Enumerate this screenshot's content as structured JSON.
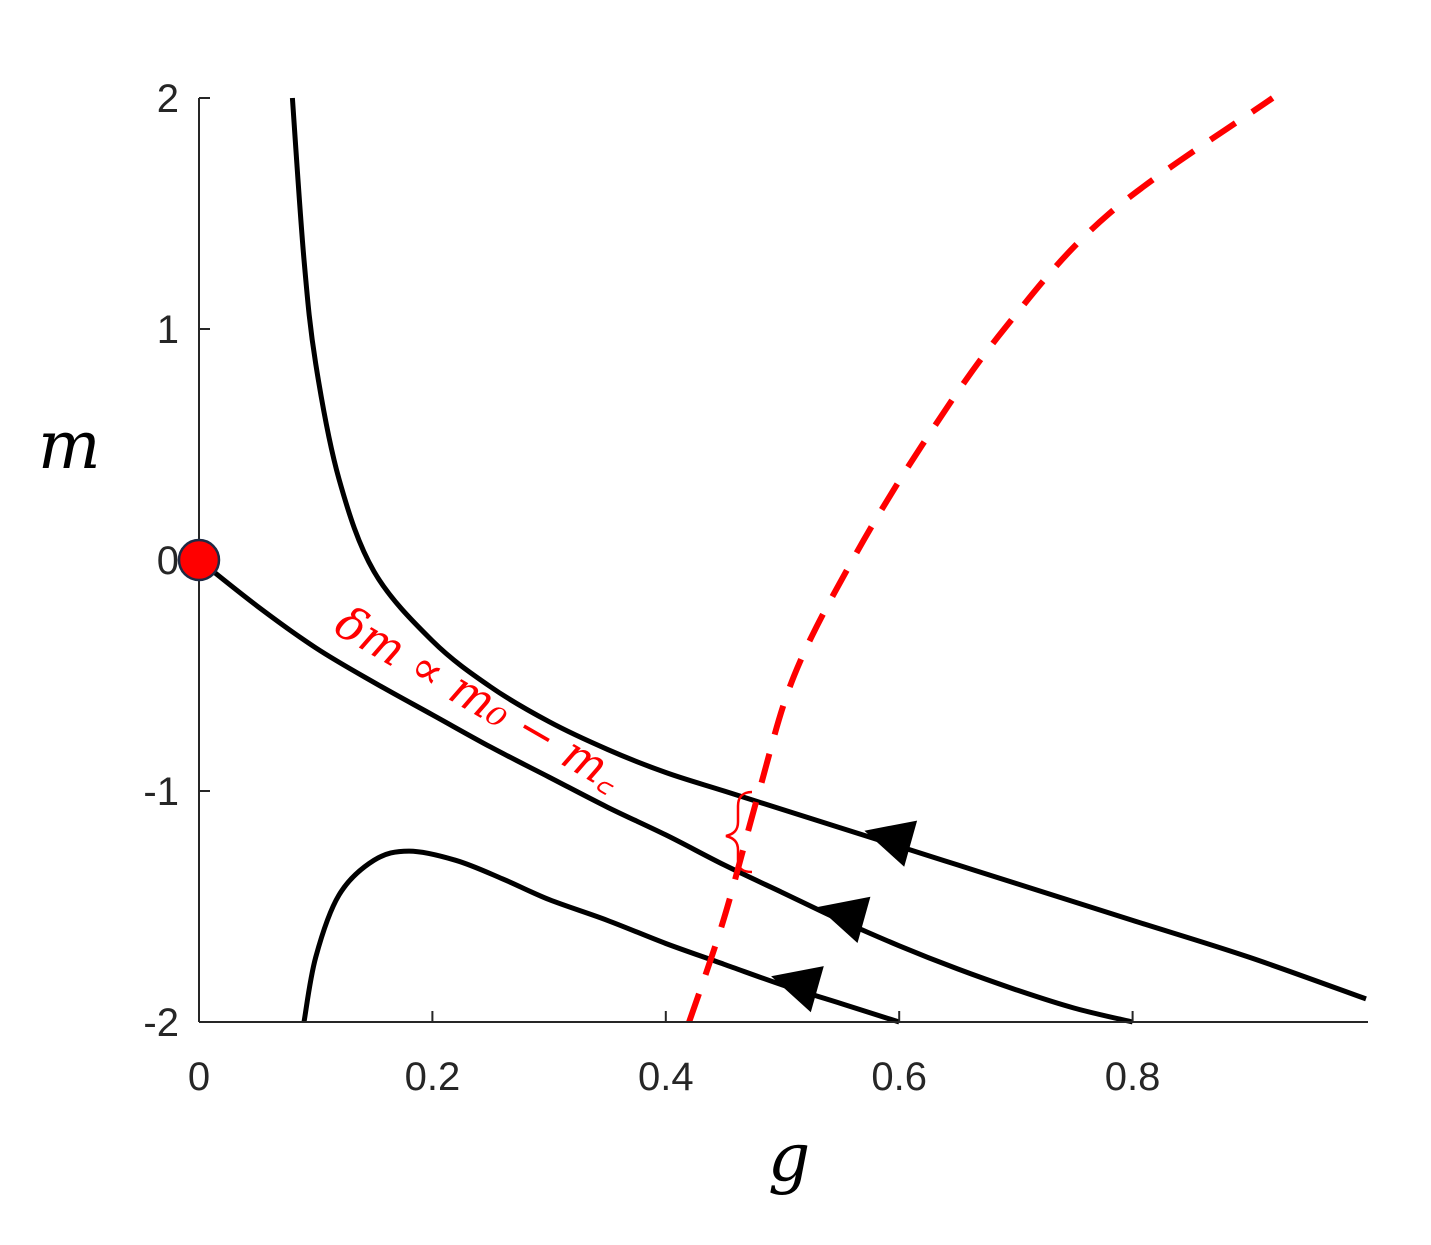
{
  "chart_data": {
    "type": "line",
    "title": "",
    "xlabel": "g",
    "ylabel": "m",
    "xlim": [
      0,
      1.0
    ],
    "ylim": [
      -2,
      2
    ],
    "xticks": [
      0,
      0.2,
      0.4,
      0.6,
      0.8
    ],
    "xtick_labels": [
      "0",
      "0.2",
      "0.4",
      "0.6",
      "0.8"
    ],
    "yticks": [
      2,
      1,
      0,
      -1,
      -2
    ],
    "ytick_labels": [
      "2",
      "1",
      "0",
      "-1",
      "-2"
    ],
    "grid": false,
    "series": [
      {
        "color": "#000000",
        "style": "solid",
        "points": [
          [
            0.08,
            2.0
          ],
          [
            0.09,
            1.3
          ],
          [
            0.1,
            0.85
          ],
          [
            0.12,
            0.35
          ],
          [
            0.15,
            -0.05
          ],
          [
            0.2,
            -0.35
          ],
          [
            0.25,
            -0.55
          ],
          [
            0.3,
            -0.7
          ],
          [
            0.35,
            -0.82
          ],
          [
            0.4,
            -0.92
          ],
          [
            0.45,
            -1.0
          ],
          [
            0.5,
            -1.08
          ],
          [
            0.55,
            -1.16
          ],
          [
            0.6,
            -1.24
          ],
          [
            0.65,
            -1.32
          ],
          [
            0.7,
            -1.4
          ],
          [
            0.8,
            -1.56
          ],
          [
            0.9,
            -1.72
          ],
          [
            1.0,
            -1.9
          ]
        ]
      },
      {
        "color": "#000000",
        "style": "solid",
        "points": [
          [
            0.0,
            0.0
          ],
          [
            0.05,
            -0.2
          ],
          [
            0.1,
            -0.38
          ],
          [
            0.15,
            -0.53
          ],
          [
            0.2,
            -0.67
          ],
          [
            0.25,
            -0.81
          ],
          [
            0.3,
            -0.94
          ],
          [
            0.35,
            -1.07
          ],
          [
            0.4,
            -1.19
          ],
          [
            0.45,
            -1.32
          ],
          [
            0.5,
            -1.44
          ],
          [
            0.55,
            -1.56
          ],
          [
            0.6,
            -1.67
          ],
          [
            0.65,
            -1.77
          ],
          [
            0.7,
            -1.86
          ],
          [
            0.75,
            -1.94
          ],
          [
            0.8,
            -2.0
          ]
        ]
      },
      {
        "color": "#000000",
        "style": "solid",
        "points": [
          [
            0.09,
            -2.0
          ],
          [
            0.1,
            -1.72
          ],
          [
            0.12,
            -1.45
          ],
          [
            0.15,
            -1.3
          ],
          [
            0.18,
            -1.26
          ],
          [
            0.22,
            -1.3
          ],
          [
            0.26,
            -1.38
          ],
          [
            0.3,
            -1.47
          ],
          [
            0.35,
            -1.56
          ],
          [
            0.4,
            -1.66
          ],
          [
            0.45,
            -1.75
          ],
          [
            0.5,
            -1.84
          ],
          [
            0.55,
            -1.92
          ],
          [
            0.6,
            -2.0
          ]
        ]
      },
      {
        "color": "#ff0000",
        "style": "dashed",
        "points": [
          [
            0.42,
            -2.0
          ],
          [
            0.45,
            -1.55
          ],
          [
            0.48,
            -1.0
          ],
          [
            0.51,
            -0.5
          ],
          [
            0.56,
            0.0
          ],
          [
            0.62,
            0.5
          ],
          [
            0.69,
            1.0
          ],
          [
            0.78,
            1.5
          ],
          [
            0.92,
            2.0
          ]
        ]
      }
    ],
    "arrows": [
      {
        "x": 0.59,
        "y": -1.2
      },
      {
        "x": 0.55,
        "y": -1.53
      },
      {
        "x": 0.51,
        "y": -1.83
      }
    ],
    "fixed_point": {
      "x": 0,
      "y": 0,
      "color": "#ff0000"
    },
    "annotation": {
      "text": "δm ∝ m₀ − m꜀",
      "color": "#ff0000"
    }
  }
}
